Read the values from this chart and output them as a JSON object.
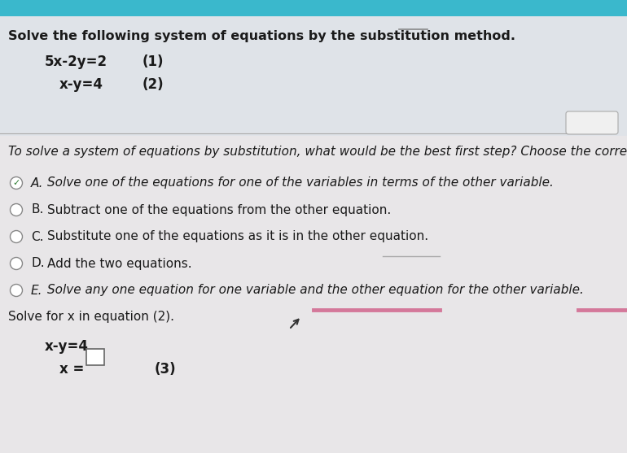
{
  "bg_color": "#e8e6e8",
  "top_panel_color": "#f0eef0",
  "top_bar_color": "#3ab8cc",
  "title_text": "Solve the following system of equations by the substitution method.",
  "eq1": "5x-2y=2",
  "eq1_num": "(1)",
  "eq2": "x-y=4",
  "eq2_num": "(2)",
  "divider_color": "#aaaaaa",
  "question_text": "To solve a system of equations by substitution, what would be the best first step? Choose the correct answ",
  "choices": [
    {
      "letter": "A",
      "text": "  Solve one of the equations for one of the variables in terms of the other variable.",
      "checked": true,
      "italic": true
    },
    {
      "letter": "B",
      "text": "  Subtract one of the equations from the other equation.",
      "checked": false,
      "italic": false
    },
    {
      "letter": "C",
      "text": "  Substitute one of the equations as it is in the other equation.",
      "checked": false,
      "italic": false
    },
    {
      "letter": "D",
      "text": "  Add the two equations.",
      "checked": false,
      "italic": false
    },
    {
      "letter": "E",
      "text": "  Solve any one equation for one variable and the other equation for the other variable.",
      "checked": false,
      "italic": true
    }
  ],
  "solve_label": "Solve for x in equation (2).",
  "eq3_line1": "x-y=4",
  "eq3_num": "(3)",
  "pink_line_color": "#d4789a",
  "font_color": "#1a1a1a",
  "title_fontsize": 11.5,
  "body_fontsize": 11,
  "choice_fontsize": 11,
  "eq_fontsize": 12
}
